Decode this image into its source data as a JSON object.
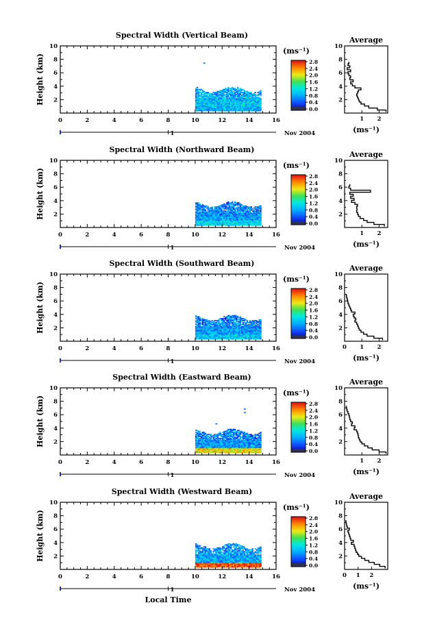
{
  "xlabel": "Local Time",
  "date_label": "Nov 2004",
  "day_label": "1",
  "ylabel": "Height (km)",
  "avg_title": "Average",
  "unit": "(ms⁻¹)",
  "chart_data": [
    {
      "type": "heatmap",
      "title": "Spectral Width (Vertical Beam)",
      "xlabel": "Local Time",
      "ylabel": "Height (km)",
      "xlim": [
        0,
        16
      ],
      "ylim": [
        0,
        10
      ],
      "x_ticks": [
        "0",
        "2",
        "4",
        "6",
        "8",
        "10",
        "12",
        "14",
        "16"
      ],
      "y_ticks": [
        "2",
        "4",
        "6",
        "8",
        "10"
      ],
      "colorbar": {
        "label": "(ms⁻¹)",
        "range": [
          0,
          2.8
        ],
        "ticks": [
          "0.0",
          "0.4",
          "0.8",
          "1.2",
          "1.6",
          "2.0",
          "2.4",
          "2.8"
        ]
      },
      "data_extent": {
        "time": [
          10,
          14.8
        ],
        "height": [
          0.3,
          3.6
        ]
      },
      "base_level": 1.0,
      "low_layer_level": 0.9,
      "isolated_echoes": [
        {
          "time": 10.6,
          "height": 7.4
        }
      ],
      "profile": {
        "xlim": [
          0,
          2.5
        ],
        "x_ticks": [
          "1",
          "2"
        ],
        "ylim": [
          0,
          10
        ],
        "y_ticks": [
          "2",
          "4",
          "6",
          "8",
          "10"
        ],
        "height": [
          0.3,
          0.6,
          0.9,
          1.2,
          1.5,
          1.8,
          2.1,
          2.4,
          2.7,
          3.0,
          3.3,
          3.6,
          3.9,
          4.2,
          4.5,
          4.8,
          5.1,
          5.4,
          5.7,
          6.0,
          6.3,
          6.6,
          6.9,
          7.2,
          7.5
        ],
        "width": [
          2.4,
          1.9,
          1.4,
          1.15,
          0.95,
          0.85,
          0.8,
          0.75,
          0.7,
          0.75,
          0.8,
          0.95,
          0.6,
          0.45,
          0.35,
          0.5,
          0.3,
          0.35,
          0.25,
          0.2,
          0.35,
          0.15,
          0.3,
          0.2,
          0.25
        ]
      }
    },
    {
      "type": "heatmap",
      "title": "Spectral Width (Northward Beam)",
      "xlabel": "Local Time",
      "ylabel": "Height (km)",
      "xlim": [
        0,
        16
      ],
      "ylim": [
        0,
        10
      ],
      "x_ticks": [
        "0",
        "2",
        "4",
        "6",
        "8",
        "10",
        "12",
        "14",
        "16"
      ],
      "y_ticks": [
        "2",
        "4",
        "6",
        "8",
        "10"
      ],
      "colorbar": {
        "label": "(ms⁻¹)",
        "range": [
          0,
          2.8
        ],
        "ticks": [
          "0.0",
          "0.4",
          "0.8",
          "1.2",
          "1.6",
          "2.0",
          "2.4",
          "2.8"
        ]
      },
      "data_extent": {
        "time": [
          10,
          14.8
        ],
        "height": [
          0.3,
          3.6
        ]
      },
      "base_level": 0.8,
      "low_layer_level": 1.1,
      "isolated_echoes": [],
      "profile": {
        "xlim": [
          0,
          2.5
        ],
        "x_ticks": [
          "1",
          "2"
        ],
        "ylim": [
          0,
          10
        ],
        "y_ticks": [
          "2",
          "4",
          "6",
          "8",
          "10"
        ],
        "height": [
          0.3,
          0.6,
          0.9,
          1.2,
          1.5,
          1.8,
          2.1,
          2.4,
          2.7,
          3.0,
          3.3,
          3.6,
          3.9,
          4.2,
          4.5,
          4.8,
          5.1,
          5.4,
          5.7,
          6.0,
          6.3
        ],
        "width": [
          2.3,
          1.7,
          1.3,
          1.1,
          0.9,
          0.8,
          0.75,
          0.7,
          0.72,
          0.7,
          0.75,
          0.6,
          0.4,
          0.55,
          0.35,
          0.5,
          0.3,
          1.5,
          0.35,
          0.25,
          0.3
        ]
      }
    },
    {
      "type": "heatmap",
      "title": "Spectral Width (Southward Beam)",
      "xlabel": "Local Time",
      "ylabel": "Height (km)",
      "xlim": [
        0,
        16
      ],
      "ylim": [
        0,
        10
      ],
      "x_ticks": [
        "0",
        "2",
        "4",
        "6",
        "8",
        "10",
        "12",
        "14",
        "16"
      ],
      "y_ticks": [
        "2",
        "4",
        "6",
        "8",
        "10"
      ],
      "colorbar": {
        "label": "(ms⁻¹)",
        "range": [
          0,
          2.8
        ],
        "ticks": [
          "0.0",
          "0.4",
          "0.8",
          "1.2",
          "1.6",
          "2.0",
          "2.4",
          "2.8"
        ]
      },
      "data_extent": {
        "time": [
          10,
          14.8
        ],
        "height": [
          0.3,
          3.6
        ]
      },
      "base_level": 0.8,
      "low_layer_level": 1.0,
      "isolated_echoes": [],
      "profile": {
        "xlim": [
          0,
          2.5
        ],
        "x_ticks": [
          "0",
          "1",
          "2"
        ],
        "ylim": [
          0,
          10
        ],
        "y_ticks": [
          "2",
          "4",
          "6",
          "8",
          "10"
        ],
        "height": [
          0.3,
          0.6,
          0.9,
          1.2,
          1.5,
          1.8,
          2.1,
          2.4,
          2.7,
          3.0,
          3.3,
          3.6,
          3.9,
          4.2,
          4.5,
          4.8,
          5.1,
          5.4,
          5.7,
          6.0,
          6.3,
          6.6,
          6.9
        ],
        "width": [
          2.2,
          1.7,
          1.3,
          1.1,
          0.95,
          0.85,
          0.8,
          0.75,
          0.7,
          0.6,
          0.65,
          0.55,
          0.5,
          0.6,
          0.4,
          0.35,
          0.3,
          0.25,
          0.2,
          0.18,
          0.15,
          0.12,
          0.1
        ]
      }
    },
    {
      "type": "heatmap",
      "title": "Spectral Width (Eastward Beam)",
      "xlabel": "Local Time",
      "ylabel": "Height (km)",
      "xlim": [
        0,
        16
      ],
      "ylim": [
        0,
        10
      ],
      "x_ticks": [
        "0",
        "2",
        "4",
        "6",
        "8",
        "10",
        "12",
        "14",
        "16"
      ],
      "y_ticks": [
        "2",
        "4",
        "6",
        "8",
        "10"
      ],
      "colorbar": {
        "label": "(ms⁻¹)",
        "range": [
          0,
          2.8
        ],
        "ticks": [
          "0.0",
          "0.4",
          "0.8",
          "1.2",
          "1.6",
          "2.0",
          "2.4",
          "2.8"
        ]
      },
      "data_extent": {
        "time": [
          10,
          14.8
        ],
        "height": [
          0.3,
          3.6
        ]
      },
      "base_level": 0.8,
      "low_layer_level": 2.1,
      "isolated_echoes": [
        {
          "time": 11.5,
          "height": 4.6
        },
        {
          "time": 13.6,
          "height": 6.8
        },
        {
          "time": 13.6,
          "height": 6.3
        }
      ],
      "profile": {
        "xlim": [
          0,
          2.5
        ],
        "x_ticks": [
          "1",
          "2"
        ],
        "ylim": [
          0,
          10
        ],
        "y_ticks": [
          "2",
          "4",
          "6",
          "8",
          "10"
        ],
        "height": [
          0.3,
          0.6,
          0.9,
          1.2,
          1.5,
          1.8,
          2.1,
          2.4,
          2.7,
          3.0,
          3.3,
          3.6,
          3.9,
          4.2,
          4.5,
          4.8,
          5.1,
          5.4,
          5.7,
          6.0,
          6.3,
          6.6,
          6.9,
          7.2
        ],
        "width": [
          2.4,
          2.0,
          1.6,
          1.35,
          1.15,
          1.0,
          0.9,
          0.85,
          0.8,
          0.78,
          0.75,
          0.7,
          0.55,
          0.6,
          0.4,
          0.45,
          0.35,
          0.3,
          0.28,
          0.25,
          0.2,
          0.15,
          0.12,
          0.1
        ]
      }
    },
    {
      "type": "heatmap",
      "title": "Spectral Width (Westward Beam)",
      "xlabel": "Local Time",
      "ylabel": "Height (km)",
      "xlim": [
        0,
        16
      ],
      "ylim": [
        0,
        10
      ],
      "x_ticks": [
        "0",
        "2",
        "4",
        "6",
        "8",
        "10",
        "12",
        "14",
        "16"
      ],
      "y_ticks": [
        "2",
        "4",
        "6",
        "8",
        "10"
      ],
      "colorbar": {
        "label": "(ms⁻¹)",
        "range": [
          0,
          2.8
        ],
        "ticks": [
          "0.0",
          "0.4",
          "0.8",
          "1.2",
          "1.6",
          "2.0",
          "2.4",
          "2.8"
        ]
      },
      "data_extent": {
        "time": [
          10,
          14.8
        ],
        "height": [
          0.3,
          3.6
        ]
      },
      "base_level": 0.9,
      "low_layer_level": 2.6,
      "isolated_echoes": [],
      "profile": {
        "xlim": [
          0,
          3.2
        ],
        "x_ticks": [
          "0",
          "1",
          "2"
        ],
        "ylim": [
          0,
          10
        ],
        "y_ticks": [
          "2",
          "4",
          "6",
          "8",
          "10"
        ],
        "height": [
          0.3,
          0.6,
          0.9,
          1.2,
          1.5,
          1.8,
          2.1,
          2.4,
          2.7,
          3.0,
          3.3,
          3.6,
          3.9,
          4.2,
          4.5,
          4.8,
          5.1,
          5.4,
          5.7,
          6.0,
          6.3,
          6.6,
          6.9,
          7.2
        ],
        "width": [
          3.0,
          2.6,
          2.2,
          1.8,
          1.5,
          1.25,
          1.05,
          0.95,
          0.85,
          0.8,
          0.75,
          0.7,
          0.5,
          0.65,
          0.45,
          0.4,
          0.35,
          0.3,
          0.25,
          0.35,
          0.2,
          0.15,
          0.12,
          0.1
        ]
      }
    }
  ]
}
